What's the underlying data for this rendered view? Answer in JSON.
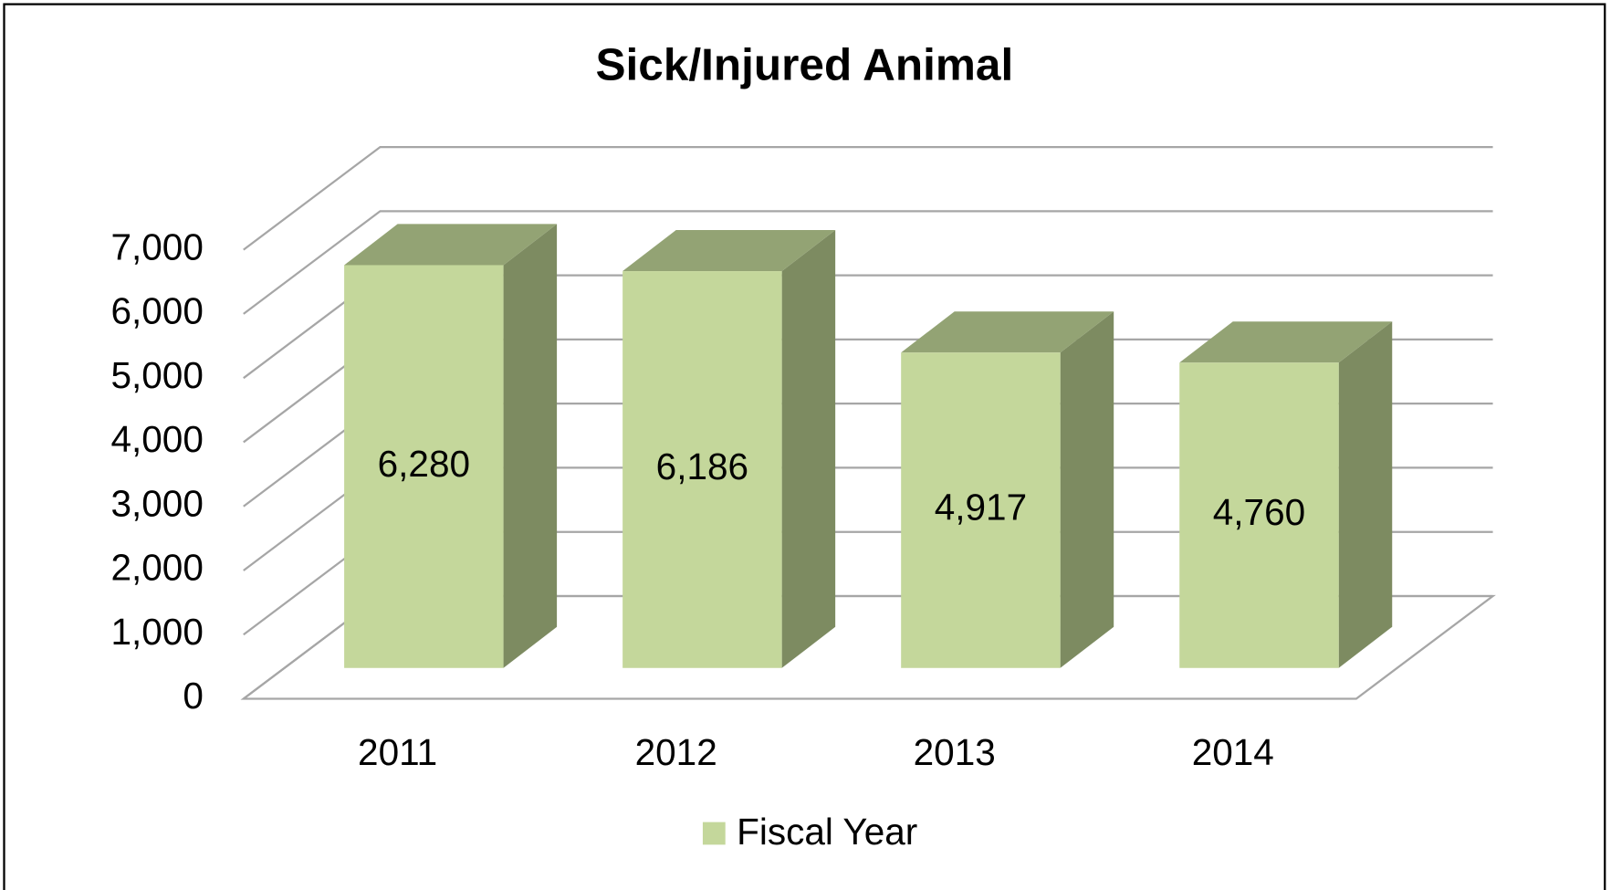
{
  "chart_data": {
    "type": "bar3d",
    "title": "Sick/Injured Animal",
    "categories": [
      "2011",
      "2012",
      "2013",
      "2014"
    ],
    "series": [
      {
        "name": "Fiscal Year",
        "color": "#c4d79b",
        "values": [
          6280,
          6186,
          4917,
          4760
        ],
        "value_labels": [
          "6,280",
          "6,186",
          "4,917",
          "4,760"
        ]
      }
    ],
    "ylim": [
      0,
      7000
    ],
    "yticks": [
      {
        "value": 0,
        "label": "0"
      },
      {
        "value": 1000,
        "label": "1,000"
      },
      {
        "value": 2000,
        "label": "2,000"
      },
      {
        "value": 3000,
        "label": "3,000"
      },
      {
        "value": 4000,
        "label": "4,000"
      },
      {
        "value": 5000,
        "label": "5,000"
      },
      {
        "value": 6000,
        "label": "6,000"
      },
      {
        "value": 7000,
        "label": "7,000"
      }
    ],
    "grid": true,
    "legend": "bottom"
  }
}
